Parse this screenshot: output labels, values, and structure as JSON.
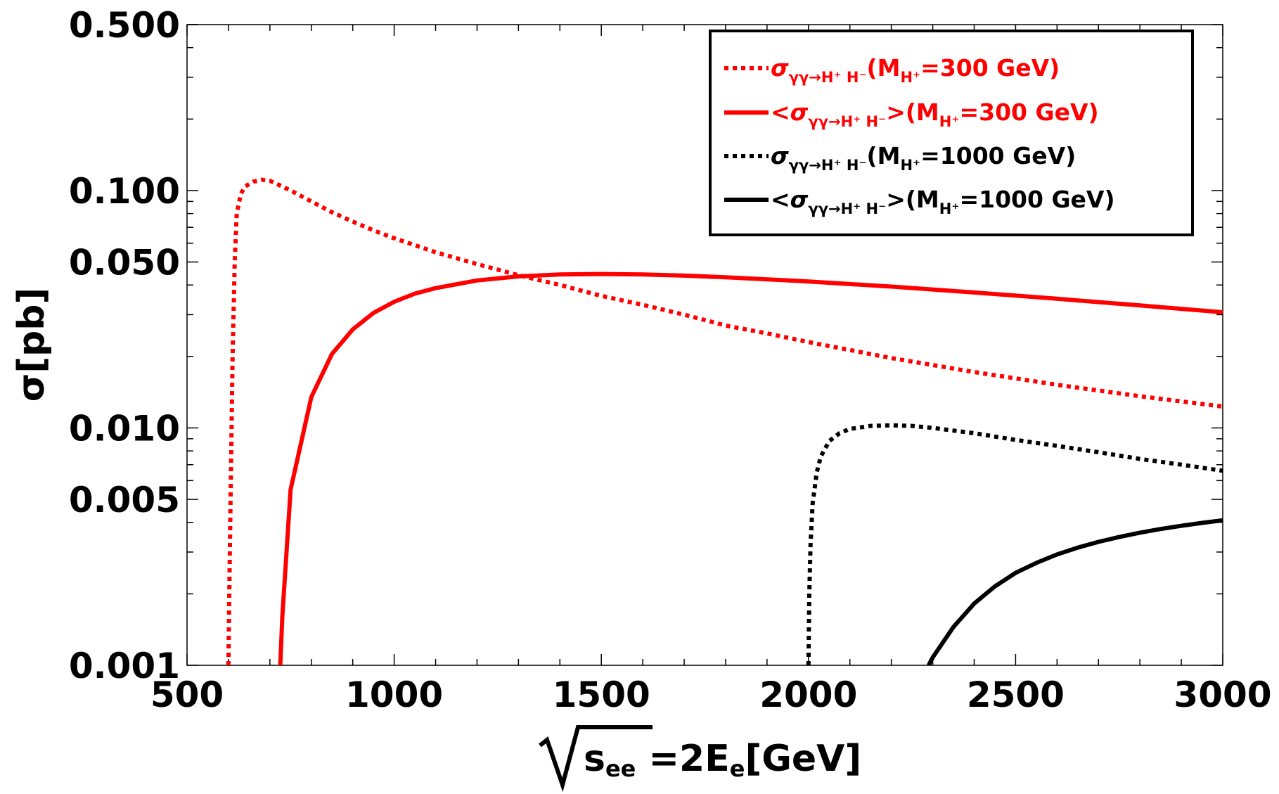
{
  "chart_data": {
    "type": "line",
    "title": "",
    "xlabel": {
      "radicand": "s",
      "radicand_sub": "ee",
      "rest": " =2E",
      "rest_sub": "e",
      "unit": "[GeV]"
    },
    "ylabel": "σ[pb]",
    "xlim": [
      500,
      3000
    ],
    "ylim": [
      0.001,
      0.5
    ],
    "yscale": "log",
    "x_ticks": [
      500,
      1000,
      1500,
      2000,
      2500,
      3000
    ],
    "x_tick_labels": [
      "500",
      "1000",
      "1500",
      "2000",
      "2500",
      "3000"
    ],
    "y_ticks": [
      0.001,
      0.005,
      0.01,
      0.05,
      0.1,
      0.5
    ],
    "y_tick_labels": [
      "0.001",
      "0.005",
      "0.010",
      "0.050",
      "0.100",
      "0.500"
    ],
    "legend_position": "top-right",
    "series": [
      {
        "name": "σγγ→H+ H-(MH+=300 GeV)",
        "legend": {
          "prefix": "",
          "sym": "σ",
          "sub": "γγ→H⁺ H⁻",
          "mid": "(M",
          "msub": "H⁺",
          "tail": "=300 GeV)"
        },
        "color": "#ff0000",
        "style": "dotted",
        "x": [
          600,
          602,
          605,
          610,
          615,
          620,
          630,
          640,
          660,
          680,
          700,
          720,
          750,
          800,
          850,
          900,
          950,
          1000,
          1100,
          1200,
          1300,
          1400,
          1500,
          1600,
          1700,
          1800,
          1900,
          2000,
          2200,
          2400,
          2600,
          2800,
          3000
        ],
        "values": [
          0.001,
          0.002,
          0.005,
          0.02,
          0.05,
          0.08,
          0.097,
          0.104,
          0.109,
          0.111,
          0.11,
          0.106,
          0.1,
          0.09,
          0.081,
          0.074,
          0.068,
          0.063,
          0.055,
          0.049,
          0.044,
          0.04,
          0.036,
          0.033,
          0.03,
          0.027,
          0.025,
          0.023,
          0.0197,
          0.0172,
          0.0152,
          0.0136,
          0.0123
        ]
      },
      {
        "name": "<σγγ→H+ H->(MH+=300 GeV)",
        "legend": {
          "prefix": "<",
          "sym": "σ",
          "sub": "γγ→H⁺ H⁻",
          "mid": ">(M",
          "msub": "H⁺",
          "tail": "=300 GeV)"
        },
        "color": "#ff0000",
        "style": "solid",
        "x": [
          725,
          730,
          750,
          800,
          850,
          900,
          950,
          1000,
          1050,
          1100,
          1200,
          1300,
          1400,
          1500,
          1600,
          1700,
          1800,
          2000,
          2200,
          2400,
          2600,
          2800,
          3000
        ],
        "values": [
          0.001,
          0.0016,
          0.0055,
          0.0135,
          0.0205,
          0.026,
          0.0305,
          0.034,
          0.0368,
          0.0388,
          0.0418,
          0.0435,
          0.0443,
          0.0445,
          0.0443,
          0.0438,
          0.0431,
          0.0414,
          0.0394,
          0.0372,
          0.035,
          0.0328,
          0.0307
        ]
      },
      {
        "name": "σγγ→H+ H-(MH+=1000 GeV)",
        "legend": {
          "prefix": "",
          "sym": "σ",
          "sub": "γγ→H⁺ H⁻",
          "mid": "(M",
          "msub": "H⁺",
          "tail": "=1000 GeV)"
        },
        "color": "#000000",
        "style": "dotted",
        "x": [
          2000,
          2002,
          2005,
          2010,
          2020,
          2030,
          2050,
          2075,
          2100,
          2150,
          2200,
          2250,
          2300,
          2400,
          2500,
          2600,
          2700,
          2800,
          2900,
          3000
        ],
        "values": [
          0.001,
          0.002,
          0.0032,
          0.0048,
          0.0065,
          0.0076,
          0.0088,
          0.0095,
          0.0099,
          0.0102,
          0.01025,
          0.0102,
          0.01,
          0.0095,
          0.0089,
          0.0084,
          0.0079,
          0.0074,
          0.007,
          0.0066
        ]
      },
      {
        "name": "<σγγ→H+ H->(MH+=1000 GeV)",
        "legend": {
          "prefix": "<",
          "sym": "σ",
          "sub": "γγ→H⁺ H⁻",
          "mid": ">(M",
          "msub": "H⁺",
          "tail": "=1000 GeV)"
        },
        "color": "#000000",
        "style": "solid",
        "x": [
          2290,
          2300,
          2350,
          2400,
          2450,
          2500,
          2550,
          2600,
          2650,
          2700,
          2750,
          2800,
          2850,
          2900,
          2950,
          3000
        ],
        "values": [
          0.001,
          0.00108,
          0.00145,
          0.00182,
          0.00215,
          0.00245,
          0.0027,
          0.00293,
          0.00313,
          0.00331,
          0.00347,
          0.00362,
          0.00375,
          0.00387,
          0.00398,
          0.00408
        ]
      }
    ]
  }
}
